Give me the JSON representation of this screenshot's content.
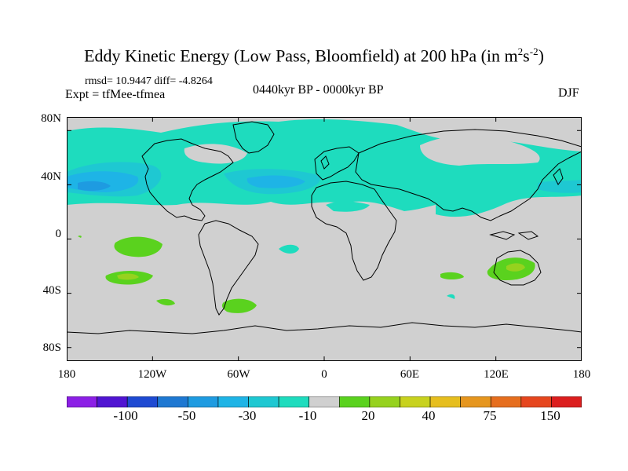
{
  "title": {
    "main": "Eddy Kinetic Energy (Low Pass, Bloomfield) at 200 hPa (in m",
    "sup1": "2",
    "mid": "s",
    "sup2": "-2",
    "close": ")"
  },
  "stats": "rmsd= 10.9447 diff= -4.8264",
  "expt": "Expt = tfMee-tfmea",
  "period": "0440kyr BP - 0000kyr BP",
  "season": "DJF",
  "colors": {
    "background": "#d0d0d0",
    "coast": "#000000"
  },
  "chart_data": {
    "type": "heatmap",
    "projection": "cylindrical equidistant",
    "xlim": [
      -180,
      180
    ],
    "ylim": [
      -90,
      90
    ],
    "x_tick_labels": [
      "180",
      "120W",
      "60W",
      "0",
      "60E",
      "120E",
      "180"
    ],
    "y_tick_labels": [
      "80N",
      "40N",
      "0",
      "40S",
      "80S"
    ],
    "colorbar": {
      "colors": [
        "#8c1fe6",
        "#5014d2",
        "#1e4ad2",
        "#1e78d2",
        "#1e9be1",
        "#1eb4e6",
        "#1ec8d2",
        "#1edcbe",
        "#d0d0d0",
        "#5ad21e",
        "#96d21e",
        "#c8d21e",
        "#e6be1e",
        "#e6961e",
        "#e66e1e",
        "#e6461e",
        "#dc1e1e"
      ],
      "labels": [
        "-100",
        "-50",
        "-30",
        "-10",
        "20",
        "40",
        "75",
        "150"
      ]
    }
  }
}
